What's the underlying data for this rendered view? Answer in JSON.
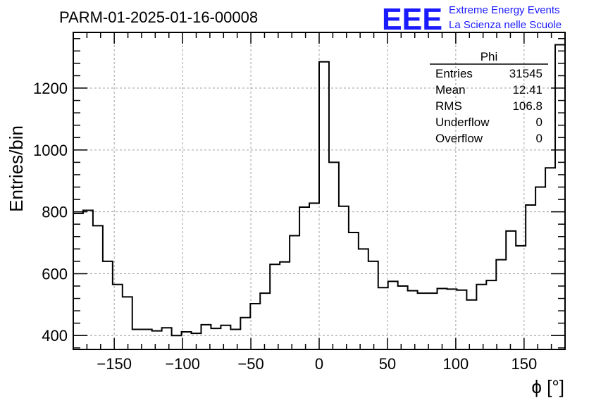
{
  "chart_data": {
    "type": "histogram",
    "title": "PARM-01-2025-01-16-00008",
    "xlabel": "ϕ [°]",
    "ylabel": "Entries/bin",
    "xlim": [
      -180,
      180
    ],
    "ylim": [
      355,
      1380
    ],
    "bin_width": 7.2,
    "x_ticks": [
      -150,
      -100,
      -50,
      0,
      50,
      100,
      150
    ],
    "x_tick_labels": [
      "−150",
      "−100",
      "−50",
      "0",
      "50",
      "100",
      "150"
    ],
    "y_ticks": [
      400,
      600,
      800,
      1000,
      1200
    ],
    "y_tick_labels": [
      "400",
      "600",
      "800",
      "1000",
      "1200"
    ],
    "grid": true,
    "values": [
      795,
      805,
      755,
      640,
      565,
      525,
      420,
      420,
      415,
      425,
      400,
      412,
      407,
      435,
      423,
      433,
      420,
      458,
      503,
      537,
      630,
      638,
      723,
      815,
      828,
      1285,
      960,
      818,
      733,
      680,
      640,
      555,
      575,
      560,
      545,
      537,
      537,
      552,
      550,
      547,
      515,
      565,
      578,
      645,
      738,
      690,
      822,
      880,
      942,
      1340
    ],
    "stats": {
      "name": "Phi",
      "rows": [
        {
          "label": "Entries",
          "value": "31545"
        },
        {
          "label": "Mean",
          "value": "12.41"
        },
        {
          "label": "RMS",
          "value": "106.8"
        },
        {
          "label": "Underflow",
          "value": "0"
        },
        {
          "label": "Overflow",
          "value": "0"
        }
      ]
    },
    "colors": {
      "line": "#000000",
      "grid": "#a0a0a0",
      "logo": "#1a1aff"
    }
  },
  "logo": {
    "mark": "EEE",
    "line1": "Extreme Energy Events",
    "line2": "La Scienza nelle Scuole"
  }
}
